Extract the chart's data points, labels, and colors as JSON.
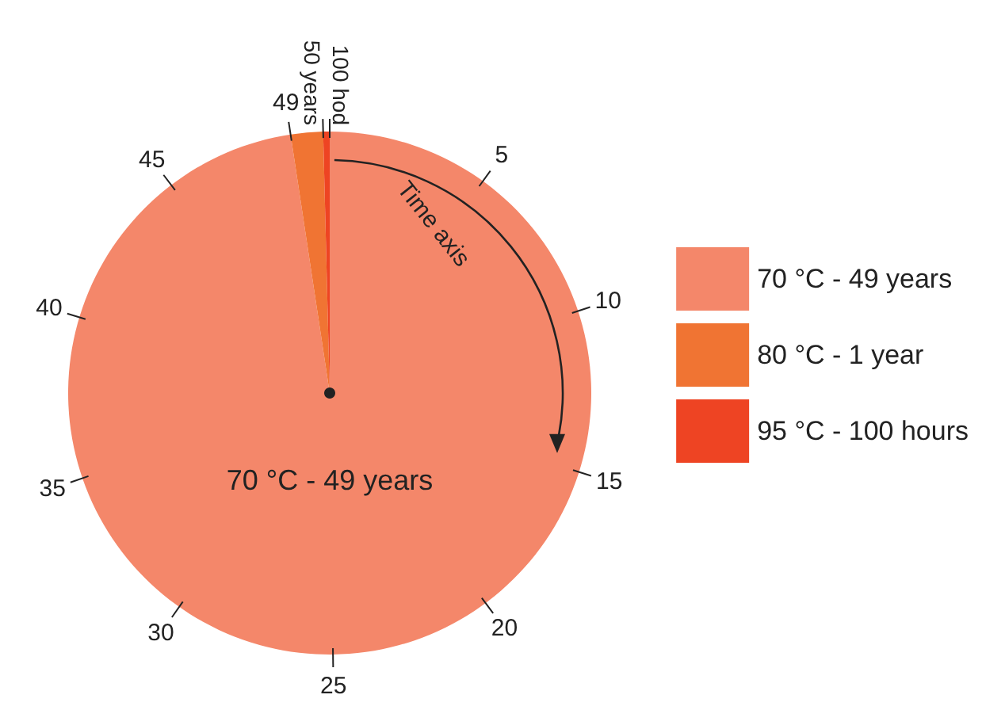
{
  "chart_data": {
    "type": "pie",
    "categories": [
      "70 °C - 49 years",
      "80 °C - 1 year",
      "95 °C - 100 hours"
    ],
    "values": [
      97.61,
      1.99,
      0.4
    ],
    "colors": [
      "#f4876a",
      "#f07433",
      "#ee4423"
    ],
    "legend": "right",
    "annotations": [
      "Time axis",
      "70 °C - 49 years",
      "5",
      "10",
      "15",
      "20",
      "25",
      "30",
      "35",
      "40",
      "45",
      "49",
      "50 years",
      "100 hod"
    ]
  }
}
